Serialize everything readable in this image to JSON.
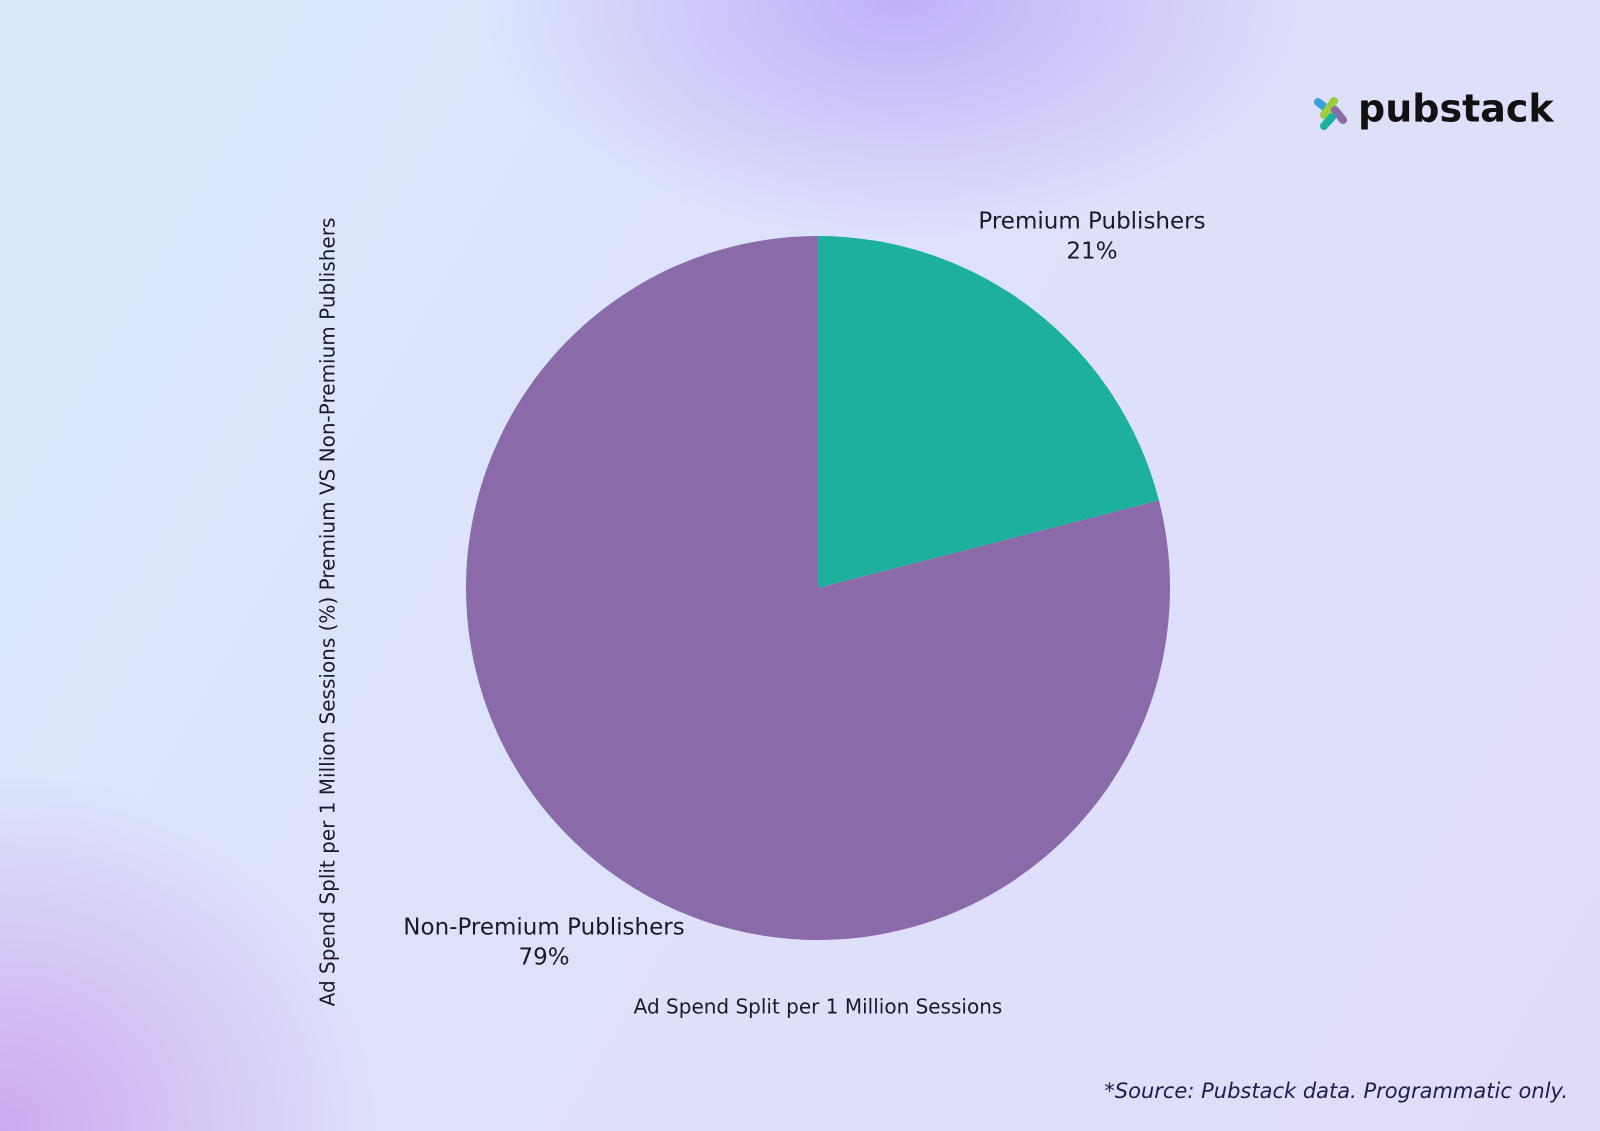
{
  "logo": "pubstack",
  "footnote": "*Source: Pubstack data. Programmatic only.",
  "chart_data": {
    "type": "pie",
    "categories": [
      "Premium Publishers",
      "Non-Premium Publishers"
    ],
    "values": [
      21,
      79
    ],
    "value_labels": [
      "21%",
      "79%"
    ],
    "colors": [
      "#1db09d",
      "#8b6aaa"
    ],
    "xlabel": "Ad Spend Split per 1 Million Sessions",
    "ylabel": "Ad Spend Split per 1 Million Sessions (%) Premium VS Non-Premium Publishers"
  }
}
